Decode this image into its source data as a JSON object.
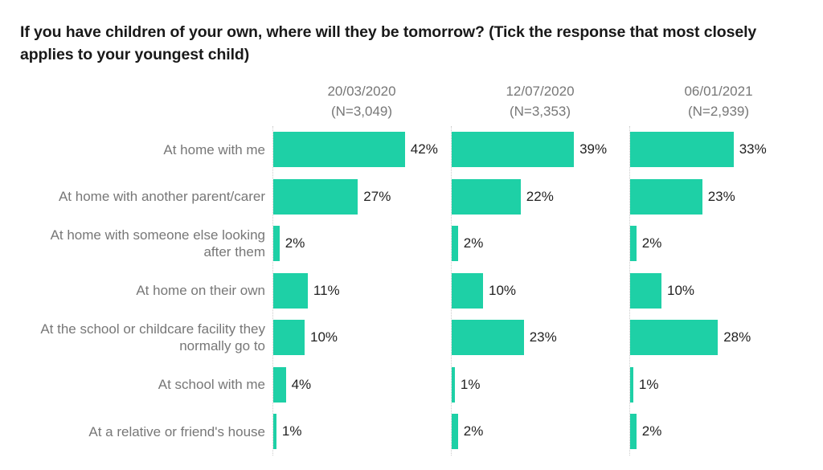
{
  "title": "If you have children of your own, where will they be tomorrow? (Tick the response that most closely applies to your youngest child)",
  "chart_data": {
    "type": "bar",
    "orientation": "horizontal",
    "title": "If you have children of your own, where will they be tomorrow? (Tick the response that most closely applies to your youngest child)",
    "categories": [
      "At home with me",
      "At home with another parent/carer",
      "At home with someone else looking after them",
      "At home on their own",
      "At the school or childcare facility they normally go to",
      "At school with me",
      "At a relative or friend's house"
    ],
    "series": [
      {
        "name": "20/03/2020",
        "n_label": "(N=3,049)",
        "values": [
          42,
          27,
          2,
          11,
          10,
          4,
          1
        ]
      },
      {
        "name": "12/07/2020",
        "n_label": "(N=3,353)",
        "values": [
          39,
          22,
          2,
          10,
          23,
          1,
          2
        ]
      },
      {
        "name": "06/01/2021",
        "n_label": "(N=2,939)",
        "values": [
          33,
          23,
          2,
          10,
          28,
          1,
          2
        ]
      }
    ],
    "value_suffix": "%",
    "bar_color": "#1ED0A6",
    "label_color": "#777777",
    "value_label_color": "#222222",
    "axis_line_style": "dotted",
    "xlim": [
      0,
      57
    ],
    "grid": false,
    "legend_position": "column-headers"
  }
}
